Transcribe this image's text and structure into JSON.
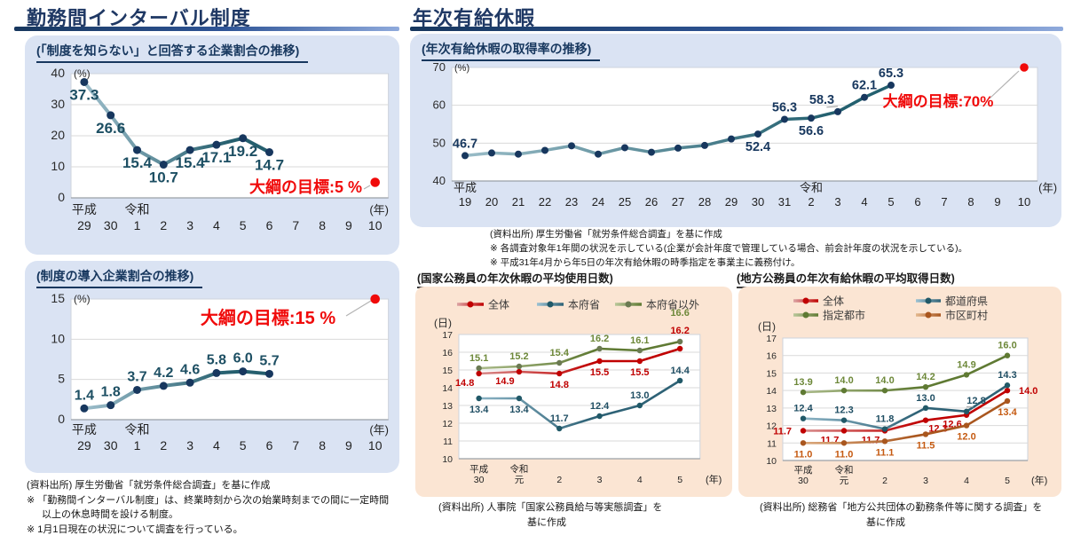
{
  "page": {
    "left_section": {
      "header": "勤務間インターバル制度",
      "panel1_title": "(「制度を知らない」と回答する企業割合の推移)",
      "panel2_title": "(制度の導入企業割合の推移)",
      "footnotes": [
        "(資料出所) 厚生労働省「就労条件総合調査」を基に作成",
        "※ 「勤務間インターバル制度」は、終業時刻から次の始業時刻までの間に一定時間以上の休息時間を設ける制度。",
        "※ 1月1日現在の状況について調査を行っている。"
      ]
    },
    "right_section": {
      "header": "年次有給休暇",
      "panel_title": "(年次有給休暇の取得率の推移)",
      "footnotes": [
        "(資料出所) 厚生労働省「就労条件総合調査」を基に作成",
        "※ 各調査対象年1年間の状況を示している(企業が会計年度で管理している場合、前会計年度の状況を示している)。",
        "※ 平成31年4月から年5日の年次有給休暇の時季指定を事業主に義務付け。"
      ],
      "national_title": "(国家公務員の年次休暇の平均使用日数)",
      "local_title": "(地方公務員の年次有給休暇の平均取得日数)",
      "national_source": [
        "(資料出所) 人事院「国家公務員給与等実態調査」を",
        "基に作成"
      ],
      "local_source": [
        "(資料出所) 総務省「地方公共団体の勤務条件等に関する調査」を",
        "基に作成"
      ]
    },
    "colors": {
      "header_navy": "#1f3864",
      "panel_blue": "#dae3f3",
      "panel_peach": "#fbe5d3",
      "target_red": "#f00a0a"
    }
  },
  "chart_data": [
    {
      "id": "awareness",
      "type": "line",
      "title": "(「制度を知らない」と回答する企業割合の推移)",
      "y_unit": "(%)",
      "x_unit": "(年)",
      "ylim": [
        0,
        40
      ],
      "yticks": [
        0,
        10,
        20,
        30,
        40
      ],
      "x_labels": [
        "29",
        "30",
        "1",
        "2",
        "3",
        "4",
        "5",
        "6",
        "7",
        "8",
        "9",
        "10"
      ],
      "era_labels": [
        {
          "text": "平成",
          "slot": 0
        },
        {
          "text": "令和",
          "slot": 2
        }
      ],
      "series": [
        {
          "key": "unaware-company-share",
          "name": "「制度を知らない」企業割合",
          "color_dark": "#255f6e",
          "color_light": "#a7c6d3",
          "dot_color": "#17375e",
          "label_color": "#1d4f63",
          "values": [
            37.3,
            26.6,
            15.4,
            10.7,
            15.4,
            17.1,
            19.2,
            14.7,
            null,
            null,
            null,
            null
          ],
          "point_labels": [
            "37.3",
            "26.6",
            "15.4",
            "10.7",
            "15.4",
            "17.1",
            "19.2",
            "14.7",
            null,
            null,
            null,
            null
          ],
          "anchors": [
            "b",
            "b",
            "b",
            "b",
            "b",
            "b",
            "b",
            "b",
            null,
            null,
            null,
            null
          ]
        }
      ],
      "target": {
        "label": "大綱の目標:5 %",
        "value": 5,
        "slot": 11,
        "color": "#f00a0a"
      }
    },
    {
      "id": "adoption",
      "type": "line",
      "title": "(制度の導入企業割合の推移)",
      "y_unit": "(%)",
      "x_unit": "(年)",
      "ylim": [
        0,
        15
      ],
      "yticks": [
        0,
        5,
        10,
        15
      ],
      "x_labels": [
        "29",
        "30",
        "1",
        "2",
        "3",
        "4",
        "5",
        "6",
        "7",
        "8",
        "9",
        "10"
      ],
      "era_labels": [
        {
          "text": "平成",
          "slot": 0
        },
        {
          "text": "令和",
          "slot": 2
        }
      ],
      "series": [
        {
          "key": "adopting-company-share",
          "name": "制度の導入企業割合",
          "color_dark": "#255f6e",
          "color_light": "#a7c6d3",
          "dot_color": "#17375e",
          "label_color": "#1d4f63",
          "values": [
            1.4,
            1.8,
            3.7,
            4.2,
            4.6,
            5.8,
            6.0,
            5.7,
            null,
            null,
            null,
            null
          ],
          "point_labels": [
            "1.4",
            "1.8",
            "3.7",
            "4.2",
            "4.6",
            "5.8",
            "6.0",
            "5.7",
            null,
            null,
            null,
            null
          ],
          "anchors": [
            "a",
            "a",
            "a",
            "a",
            "a",
            "a",
            "a",
            "a",
            null,
            null,
            null,
            null
          ]
        }
      ],
      "target": {
        "label": "大綱の目標:15 %",
        "value": 15,
        "slot": 11,
        "color": "#f00a0a"
      }
    },
    {
      "id": "acquisition",
      "type": "line",
      "title": "(年次有給休暇の取得率の推移)",
      "y_unit": "(%)",
      "x_unit": "(年)",
      "ylim": [
        40,
        70
      ],
      "yticks": [
        40,
        50,
        60,
        70
      ],
      "x_labels": [
        "19",
        "20",
        "21",
        "22",
        "23",
        "24",
        "25",
        "26",
        "27",
        "28",
        "29",
        "30",
        "31",
        "2",
        "3",
        "4",
        "5",
        "6",
        "7",
        "8",
        "9",
        "10"
      ],
      "era_labels": [
        {
          "text": "平成",
          "slot": 0
        },
        {
          "text": "令和",
          "slot": 13
        }
      ],
      "series": [
        {
          "key": "paid-leave-acquisition-rate",
          "name": "年次有給休暇の取得率",
          "color_dark": "#23606f",
          "color_light": "#9dbfca",
          "dot_color": "#17375e",
          "label_color": "#17375e",
          "values": [
            46.7,
            47.4,
            47.1,
            48.1,
            49.3,
            47.1,
            48.8,
            47.6,
            48.7,
            49.4,
            51.1,
            52.4,
            56.3,
            56.6,
            58.3,
            62.1,
            65.3,
            null,
            null,
            null,
            null,
            null
          ],
          "point_labels": [
            "46.7",
            null,
            null,
            null,
            null,
            null,
            null,
            null,
            null,
            null,
            null,
            "52.4",
            "56.3",
            "56.6",
            "58.3",
            "62.1",
            "65.3",
            null,
            null,
            null,
            null,
            null
          ],
          "anchors": [
            "a",
            null,
            null,
            null,
            null,
            null,
            null,
            null,
            null,
            null,
            null,
            "b",
            "a",
            "b",
            "al!",
            "a",
            "a",
            null,
            null,
            null,
            null,
            null
          ]
        }
      ],
      "target": {
        "label": "大綱の目標:70%",
        "value": 70,
        "slot": 21,
        "color": "#f00a0a"
      }
    },
    {
      "id": "national",
      "type": "line",
      "title": "(国家公務員の年次休暇の平均使用日数)",
      "y_unit": "(日)",
      "x_unit": "(年)",
      "ylim": [
        10,
        17
      ],
      "yticks": [
        10,
        11,
        12,
        13,
        14,
        15,
        16,
        17
      ],
      "x_labels": [
        "平成\n30",
        "令和\n元",
        "2",
        "3",
        "4",
        "5"
      ],
      "series": [
        {
          "key": "all",
          "name": "全体",
          "color_dark": "#c00000",
          "color_light": "#dca5a5",
          "label_color": "#c00000",
          "values": [
            14.8,
            14.9,
            14.8,
            15.5,
            15.5,
            16.2
          ],
          "point_labels": [
            "14.8",
            "14.9",
            "14.8",
            "15.5",
            "15.5",
            "16.2"
          ],
          "anchors": [
            "bl",
            "bl",
            "b",
            "b",
            "b",
            "a2"
          ]
        },
        {
          "key": "headquarters",
          "name": "本府省",
          "color_dark": "#2e6276",
          "color_light": "#9cc2d3",
          "dot_color": "#215968",
          "label_color": "#1f4e63",
          "values": [
            13.4,
            13.4,
            11.7,
            12.4,
            13.0,
            14.4
          ],
          "point_labels": [
            "13.4",
            "13.4",
            "11.7",
            "12.4",
            "13.0",
            "14.4"
          ],
          "anchors": [
            "b",
            "b",
            "a",
            "a",
            "a",
            "a"
          ]
        },
        {
          "key": "non-headquarters",
          "name": "本府省以外",
          "color_dark": "#5f7a33",
          "color_light": "#b9c79a",
          "dot_color": "#6b7a52",
          "label_color": "#6d8839",
          "values": [
            15.1,
            15.2,
            15.4,
            16.2,
            16.1,
            16.6
          ],
          "point_labels": [
            "15.1",
            "15.2",
            "15.4",
            "16.2",
            "16.1",
            "16.6"
          ],
          "anchors": [
            "a",
            "a",
            "a",
            "a",
            "a",
            "a3"
          ]
        }
      ]
    },
    {
      "id": "local",
      "type": "line",
      "title": "(地方公務員の年次有給休暇の平均取得日数)",
      "y_unit": "(日)",
      "x_unit": "(年)",
      "ylim": [
        10,
        17
      ],
      "yticks": [
        10,
        11,
        12,
        13,
        14,
        15,
        16,
        17
      ],
      "x_labels": [
        "平成\n30",
        "令和\n元",
        "2",
        "3",
        "4",
        "5"
      ],
      "series": [
        {
          "key": "all",
          "name": "全体",
          "color_dark": "#c00000",
          "color_light": "#dca5a5",
          "label_color": "#c00000",
          "values": [
            11.7,
            11.7,
            11.7,
            12.3,
            12.6,
            14.0
          ],
          "point_labels": [
            "11.7",
            "11.7",
            "11.7",
            "12.3",
            "12.6",
            "14.0"
          ],
          "anchors": [
            "l",
            "bl",
            "bl",
            "br",
            "bl",
            "r"
          ]
        },
        {
          "key": "prefectures",
          "name": "都道府県",
          "color_dark": "#2e6276",
          "color_light": "#9cc2d3",
          "dot_color": "#215968",
          "label_color": "#1f4e63",
          "values": [
            12.4,
            12.3,
            11.8,
            13.0,
            12.8,
            14.3
          ],
          "point_labels": [
            "12.4",
            "12.3",
            "11.8",
            "13.0",
            "12.8",
            "14.3"
          ],
          "anchors": [
            "a",
            "a",
            "a",
            "a",
            "ar!",
            "a"
          ]
        },
        {
          "key": "designated-cities",
          "name": "指定都市",
          "color_dark": "#5f7a33",
          "color_light": "#b9c79a",
          "dot_color": "#5f7a33",
          "label_color": "#6d8839",
          "values": [
            13.9,
            14.0,
            14.0,
            14.2,
            14.9,
            16.0
          ],
          "point_labels": [
            "13.9",
            "14.0",
            "14.0",
            "14.2",
            "14.9",
            "16.0"
          ],
          "anchors": [
            "a",
            "a",
            "a",
            "a",
            "a",
            "a"
          ]
        },
        {
          "key": "municipalities",
          "name": "市区町村",
          "color_dark": "#a9561e",
          "color_light": "#e3b88e",
          "label_color": "#c55a11",
          "values": [
            11.0,
            11.0,
            11.1,
            11.5,
            12.0,
            13.4
          ],
          "point_labels": [
            "11.0",
            "11.0",
            "11.1",
            "11.5",
            "12.0",
            "13.4"
          ],
          "anchors": [
            "b",
            "b",
            "b",
            "b",
            "b",
            "b"
          ]
        }
      ]
    }
  ]
}
